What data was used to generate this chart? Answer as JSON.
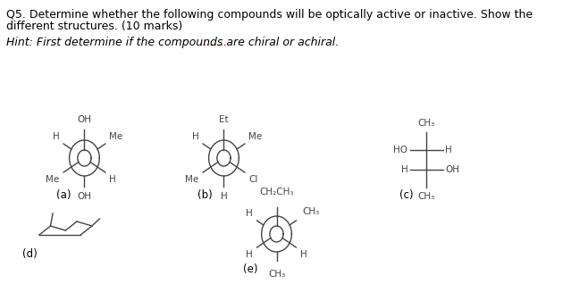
{
  "title_line1": "Q5. Determine whether the following compounds will be optically active or inactive. Show the",
  "title_line2": "different structures. (10 marks)",
  "hint_text": "Hint: First determine if the compounds are chiral or achiral.",
  "bg_color": "#ffffff",
  "text_color": "#000000",
  "font_size_title": 9.0,
  "font_size_hint": 9.0,
  "font_size_chem": 7.5,
  "label_fontsize": 8.5,
  "line_color": "#444444"
}
